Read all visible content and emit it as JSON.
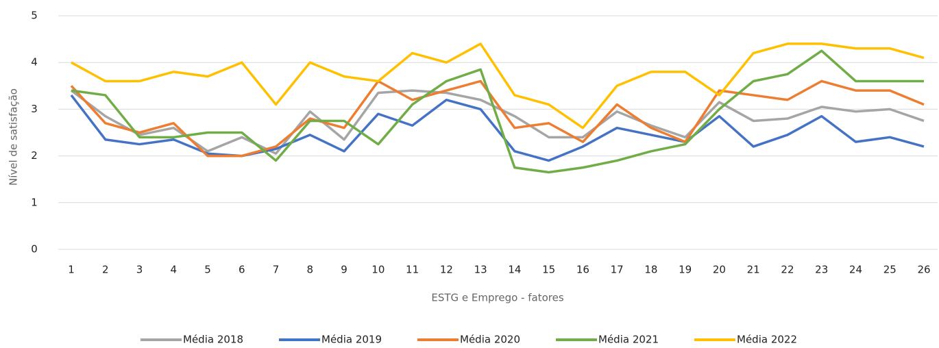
{
  "chart_data": {
    "type": "line",
    "y_label": "Nível de satisfação",
    "x_label": "ESTG e Emprego - fatores",
    "categories": [
      "1",
      "2",
      "3",
      "4",
      "5",
      "6",
      "7",
      "8",
      "9",
      "10",
      "11",
      "12",
      "13",
      "14",
      "15",
      "16",
      "17",
      "18",
      "19",
      "20",
      "21",
      "22",
      "23",
      "24",
      "25",
      "26"
    ],
    "series": [
      {
        "name": "Média 2018",
        "color": "#a5a5a5",
        "values": [
          3.4,
          2.85,
          2.45,
          2.6,
          2.1,
          2.4,
          2.05,
          2.95,
          2.35,
          3.35,
          3.4,
          3.35,
          3.2,
          2.85,
          2.4,
          2.4,
          2.95,
          2.65,
          2.4,
          3.15,
          2.75,
          2.8,
          3.05,
          2.95,
          3.0,
          2.75
        ]
      },
      {
        "name": "Média 2019",
        "color": "#4472c4",
        "values": [
          3.3,
          2.35,
          2.25,
          2.35,
          2.05,
          2.0,
          2.15,
          2.45,
          2.1,
          2.9,
          2.65,
          3.2,
          3.0,
          2.1,
          1.9,
          2.2,
          2.6,
          2.45,
          2.3,
          2.85,
          2.2,
          2.45,
          2.85,
          2.3,
          2.4,
          2.2
        ]
      },
      {
        "name": "Média 2020",
        "color": "#ed7d31",
        "values": [
          3.5,
          2.7,
          2.5,
          2.7,
          2.0,
          2.0,
          2.2,
          2.8,
          2.6,
          3.6,
          3.2,
          3.4,
          3.6,
          2.6,
          2.7,
          2.3,
          3.1,
          2.6,
          2.3,
          3.4,
          3.3,
          3.2,
          3.6,
          3.4,
          3.4,
          3.1
        ]
      },
      {
        "name": "Média 2021",
        "color": "#70ad47",
        "values": [
          3.4,
          3.3,
          2.4,
          2.4,
          2.5,
          2.5,
          1.9,
          2.75,
          2.75,
          2.25,
          3.1,
          3.6,
          3.85,
          1.75,
          1.65,
          1.75,
          1.9,
          2.1,
          2.25,
          3.0,
          3.6,
          3.75,
          4.25,
          3.6,
          3.6,
          3.6
        ]
      },
      {
        "name": "Média 2022",
        "color": "#ffc000",
        "values": [
          4.0,
          3.6,
          3.6,
          3.8,
          3.7,
          4.0,
          3.1,
          4.0,
          3.7,
          3.6,
          4.2,
          4.0,
          4.4,
          3.3,
          3.1,
          2.6,
          3.5,
          3.8,
          3.8,
          3.3,
          4.2,
          4.4,
          4.4,
          4.3,
          4.3,
          4.1
        ]
      }
    ],
    "ylim": [
      0,
      5
    ],
    "yticks": [
      0,
      1,
      2,
      3,
      4,
      5
    ],
    "grid": true,
    "legend": "bottom"
  }
}
